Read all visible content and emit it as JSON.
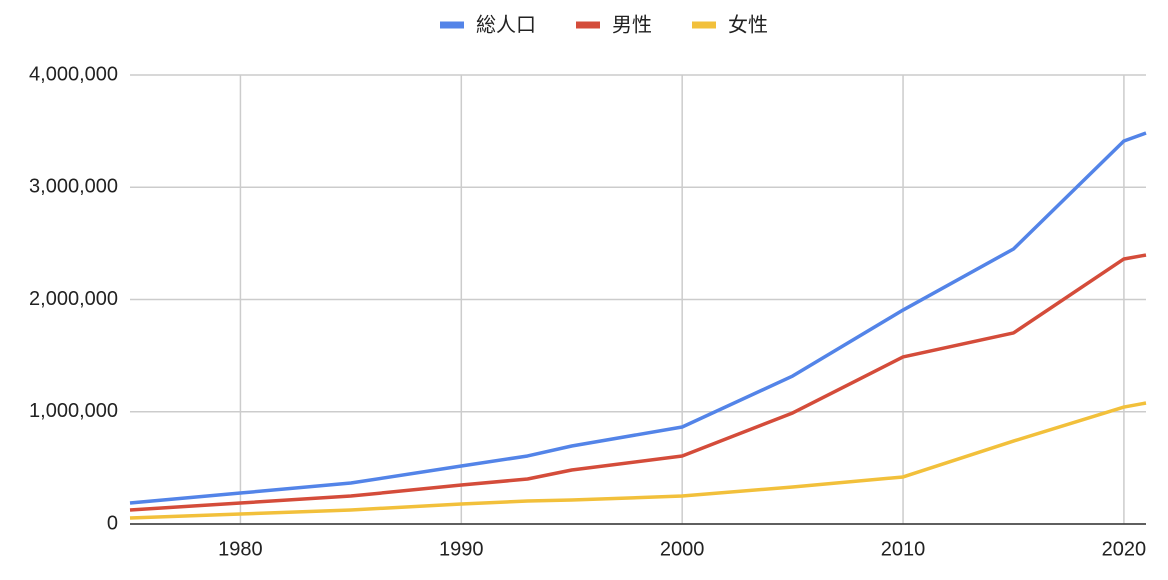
{
  "chart_data": {
    "type": "line",
    "x": [
      1975,
      1980,
      1985,
      1990,
      1993,
      1995,
      2000,
      2005,
      2010,
      2015,
      2020,
      2021
    ],
    "series": [
      {
        "name": "総人口",
        "color": "#5384e8",
        "values": [
          187000,
          276000,
          365000,
          517000,
          606000,
          695000,
          864000,
          1318000,
          1906000,
          2450000,
          3412000,
          3483000
        ]
      },
      {
        "name": "男性",
        "color": "#d44c3a",
        "values": [
          125000,
          187000,
          249000,
          347000,
          401000,
          481000,
          606000,
          989000,
          1488000,
          1702000,
          2361000,
          2396000
        ]
      },
      {
        "name": "女性",
        "color": "#f2c03b",
        "values": [
          53000,
          89000,
          125000,
          178000,
          205000,
          214000,
          249000,
          330000,
          419000,
          739000,
          1042000,
          1078000
        ]
      }
    ],
    "xlim": [
      1975,
      2021
    ],
    "xticks": [
      1980,
      1990,
      2000,
      2010,
      2020
    ],
    "ylim": [
      0,
      4000000
    ],
    "yticks": [
      0,
      {
        "value": 1000000,
        "label": "1,000,000"
      },
      {
        "value": 2000000,
        "label": "2,000,000"
      },
      {
        "value": 3000000,
        "label": "3,000,000"
      },
      {
        "value": 4000000,
        "label": "4,000,000"
      }
    ],
    "grid": true,
    "legend": "top"
  }
}
